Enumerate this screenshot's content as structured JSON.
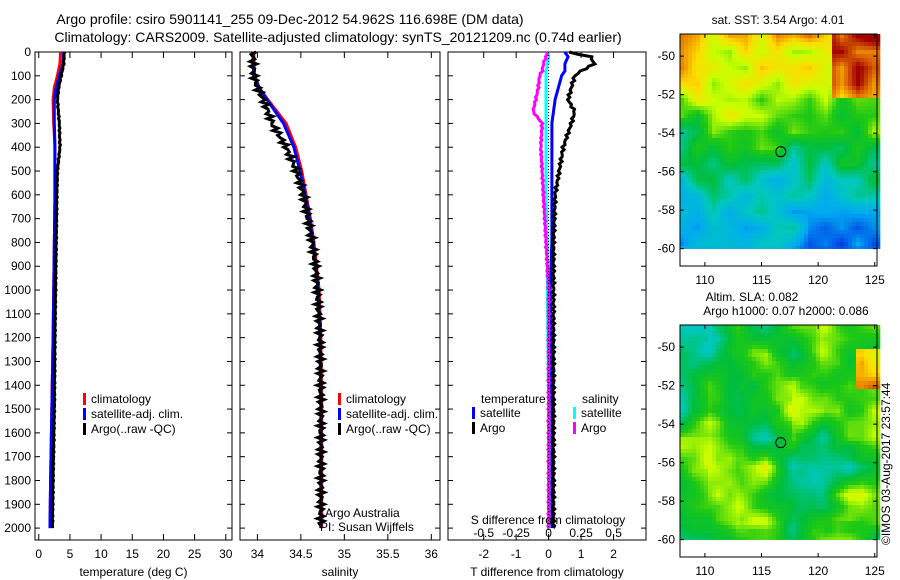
{
  "title_line1": "Argo profile: csiro 5901141_255 09-Dec-2012 54.962S 116.698E (DM data)",
  "title_line2": "Climatology: CARS2009. Satellite-adjusted climatology: synTS_20121209.nc (0.74d earlier)",
  "credit": "Argo Australia",
  "pi": "PI: Susan Wijffels",
  "timestamp": "©IMOS 03-Aug-2017 23:57:44",
  "colors": {
    "climatology": "#ff0000",
    "satellite": "#0000ff",
    "argo": "#000000",
    "sal_satellite": "#00ffff",
    "sal_argo": "#ff00ff"
  },
  "chart_data": [
    {
      "type": "line",
      "name": "temperature-profile",
      "xlabel": "temperature (deg C)",
      "ylabel": "",
      "xlim": [
        -0.6,
        31
      ],
      "ylim": [
        2050,
        0
      ],
      "xticks": [
        0,
        5,
        10,
        15,
        20,
        25,
        30
      ],
      "yticks": [
        0,
        100,
        200,
        300,
        400,
        500,
        600,
        700,
        800,
        900,
        1000,
        1100,
        1200,
        1300,
        1400,
        1500,
        1600,
        1700,
        1800,
        1900,
        2000
      ],
      "legend": [
        "climatology",
        "satellite-adj. clim.",
        "Argo(..raw -QC)"
      ],
      "legend_position": "bottom-center",
      "depth": [
        0,
        50,
        100,
        150,
        200,
        300,
        400,
        500,
        600,
        800,
        1000,
        1200,
        1500,
        1800,
        2000
      ],
      "series": [
        {
          "name": "climatology",
          "color": "#ff0000",
          "values": [
            3.5,
            3.4,
            3.0,
            2.5,
            2.3,
            2.4,
            2.6,
            2.6,
            2.6,
            2.5,
            2.4,
            2.3,
            2.1,
            1.9,
            1.8
          ]
        },
        {
          "name": "satellite-adj. clim.",
          "color": "#0000ff",
          "values": [
            4.0,
            3.9,
            3.3,
            2.8,
            2.5,
            2.5,
            2.6,
            2.6,
            2.6,
            2.5,
            2.4,
            2.3,
            2.1,
            1.9,
            1.8
          ]
        },
        {
          "name": "Argo(..raw -QC)",
          "color": "#000000",
          "values": [
            4.1,
            4.0,
            3.6,
            3.2,
            3.0,
            3.3,
            3.4,
            3.0,
            2.9,
            2.8,
            2.7,
            2.6,
            2.5,
            2.3,
            2.2
          ]
        }
      ]
    },
    {
      "type": "line",
      "name": "salinity-profile",
      "xlabel": "salinity",
      "xlim": [
        33.8,
        36.1
      ],
      "ylim": [
        2050,
        0
      ],
      "xticks": [
        34,
        34.5,
        35,
        35.5,
        36
      ],
      "legend": [
        "climatology",
        "satellite-adj. clim.",
        "Argo(..raw -QC)"
      ],
      "legend_position": "bottom-center",
      "depth": [
        0,
        50,
        100,
        150,
        200,
        300,
        400,
        500,
        600,
        700,
        800,
        900,
        1000,
        1200,
        1500,
        2000
      ],
      "series": [
        {
          "name": "climatology",
          "color": "#ff0000",
          "values": [
            33.96,
            33.96,
            33.97,
            34.02,
            34.12,
            34.33,
            34.44,
            34.51,
            34.56,
            34.61,
            34.65,
            34.68,
            34.71,
            34.73,
            34.74,
            34.74
          ]
        },
        {
          "name": "satellite-adj. clim.",
          "color": "#0000ff",
          "values": [
            33.95,
            33.95,
            33.96,
            34.02,
            34.11,
            34.3,
            34.42,
            34.49,
            34.55,
            34.6,
            34.64,
            34.67,
            34.7,
            34.72,
            34.73,
            34.73
          ]
        },
        {
          "name": "Argo(..raw -QC)",
          "color": "#000000",
          "values": [
            33.95,
            33.95,
            33.96,
            34.0,
            34.07,
            34.17,
            34.33,
            34.45,
            34.53,
            34.58,
            34.63,
            34.67,
            34.69,
            34.72,
            34.73,
            34.73
          ]
        }
      ]
    },
    {
      "type": "line",
      "name": "difference-profile",
      "xlabel": "T difference from climatology",
      "x2label": "S difference from climatology",
      "xlim": [
        -3.1,
        3
      ],
      "x2lim": [
        -0.775,
        0.75
      ],
      "ylim": [
        2050,
        0
      ],
      "xticks": [
        -2,
        -1,
        0,
        1,
        2
      ],
      "x2ticks": [
        -0.5,
        -0.25,
        0,
        0.25,
        0.5
      ],
      "legend_titles": [
        "temperature",
        "salinity"
      ],
      "legend": [
        "satellite",
        "Argo",
        "satellite",
        "Argo"
      ],
      "legend_position": "bottom",
      "depth": [
        0,
        20,
        50,
        80,
        100,
        150,
        200,
        250,
        300,
        400,
        600,
        800,
        1000,
        1500,
        2000
      ],
      "series": [
        {
          "name": "T satellite",
          "axis": "T",
          "color": "#0000ff",
          "values": [
            0.5,
            0.6,
            0.5,
            0.5,
            0.4,
            0.3,
            0.2,
            0.15,
            0.1,
            0.1,
            0.1,
            0.1,
            0.05,
            0.1,
            0.1
          ]
        },
        {
          "name": "T Argo",
          "axis": "T",
          "color": "#000000",
          "values": [
            0.6,
            1.3,
            1.4,
            1.0,
            0.8,
            0.7,
            0.6,
            0.8,
            0.7,
            0.45,
            0.2,
            0.15,
            0.15,
            0.15,
            0.15
          ]
        },
        {
          "name": "S satellite",
          "axis": "S",
          "color": "#00ffff",
          "values": [
            0.0,
            0.0,
            -0.01,
            -0.02,
            -0.02,
            -0.02,
            -0.02,
            -0.02,
            -0.02,
            -0.02,
            -0.02,
            -0.01,
            -0.01,
            0.0,
            0.0
          ]
        },
        {
          "name": "S Argo",
          "axis": "S",
          "color": "#ff00ff",
          "values": [
            -0.01,
            -0.02,
            -0.04,
            -0.05,
            -0.07,
            -0.08,
            -0.1,
            -0.12,
            -0.05,
            -0.06,
            -0.04,
            -0.02,
            0.0,
            0.0,
            0.0
          ]
        }
      ]
    },
    {
      "type": "heatmap",
      "name": "sst-map",
      "title": "sat. SST: 3.54 Argo: 4.01",
      "xlim": [
        107.8,
        125.2
      ],
      "ylim": [
        -60.9,
        -48.85
      ],
      "xticks": [
        110,
        115,
        120,
        125
      ],
      "yticks": [
        -50,
        -52,
        -54,
        -56,
        -58,
        -60
      ],
      "marker": {
        "lon": 116.698,
        "lat": -54.962
      }
    },
    {
      "type": "heatmap",
      "name": "sla-map",
      "title": "Altim. SLA: 0.082",
      "subtitle": "Argo h1000: 0.07 h2000: 0.086",
      "xlim": [
        107.8,
        125.2
      ],
      "ylim": [
        -60.9,
        -48.85
      ],
      "xticks": [
        110,
        115,
        120,
        125
      ],
      "yticks": [
        -50,
        -52,
        -54,
        -56,
        -58,
        -60
      ],
      "marker": {
        "lon": 116.698,
        "lat": -54.962
      }
    }
  ]
}
